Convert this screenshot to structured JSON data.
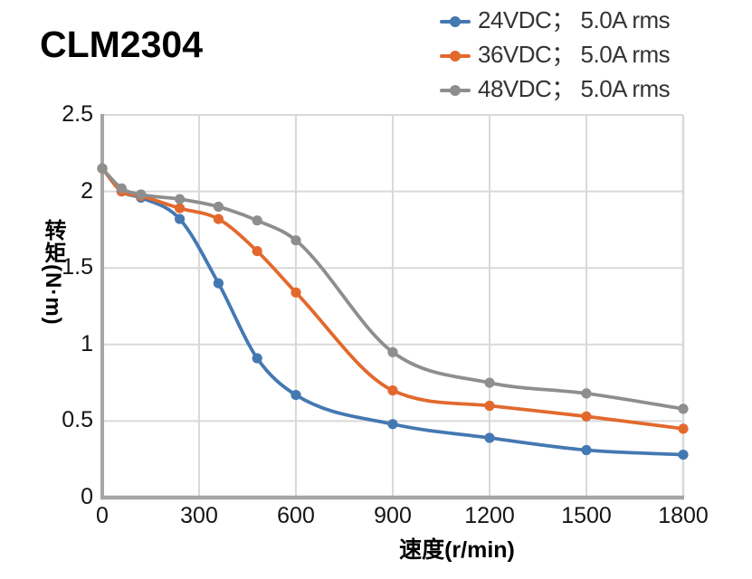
{
  "page": {
    "title": "CLM2304"
  },
  "colors": {
    "background": "#FFFFFF",
    "grid": "#D9D9D9",
    "spine": "#A6A6A6",
    "tick_text": "#141414",
    "title_text": "#000000",
    "legend_text": "#343434",
    "series_blue": "#4478B2",
    "series_orange": "#E2692D",
    "series_gray": "#8E8E8E"
  },
  "chart_data": {
    "type": "line",
    "title": "CLM2304",
    "xlabel": "速度(r/min)",
    "ylabel": "转矩(N·m)",
    "xlim": [
      0,
      1800
    ],
    "ylim": [
      0,
      2.5
    ],
    "grid": true,
    "line_style": "smooth",
    "marker": "circle",
    "legend_position": "top-right",
    "x_ticks": {
      "values": [
        0,
        300,
        600,
        900,
        1200,
        1500,
        1800
      ],
      "labels": [
        "0",
        "300",
        "600",
        "900",
        "1200",
        "1500",
        "1800"
      ]
    },
    "y_ticks": {
      "values": [
        0,
        0.5,
        1,
        1.5,
        2,
        2.5
      ],
      "labels": [
        "0",
        "0.5",
        "1",
        "1.5",
        "2",
        "2.5"
      ]
    },
    "x": [
      0,
      60,
      120,
      240,
      360,
      480,
      600,
      900,
      1200,
      1500,
      1800
    ],
    "series": [
      {
        "name": "24VDC； 5.0A rms",
        "color": "#4478B2",
        "values": [
          2.15,
          2.0,
          1.96,
          1.82,
          1.4,
          0.91,
          0.67,
          0.48,
          0.39,
          0.31,
          0.28
        ]
      },
      {
        "name": "36VDC； 5.0A rms",
        "color": "#E2692D",
        "values": [
          2.15,
          2.0,
          1.97,
          1.89,
          1.82,
          1.61,
          1.34,
          0.7,
          0.6,
          0.53,
          0.45
        ]
      },
      {
        "name": "48VDC； 5.0A rms",
        "color": "#8E8E8E",
        "values": [
          2.15,
          2.02,
          1.98,
          1.95,
          1.9,
          1.81,
          1.68,
          0.95,
          0.75,
          0.68,
          0.58
        ]
      }
    ]
  }
}
